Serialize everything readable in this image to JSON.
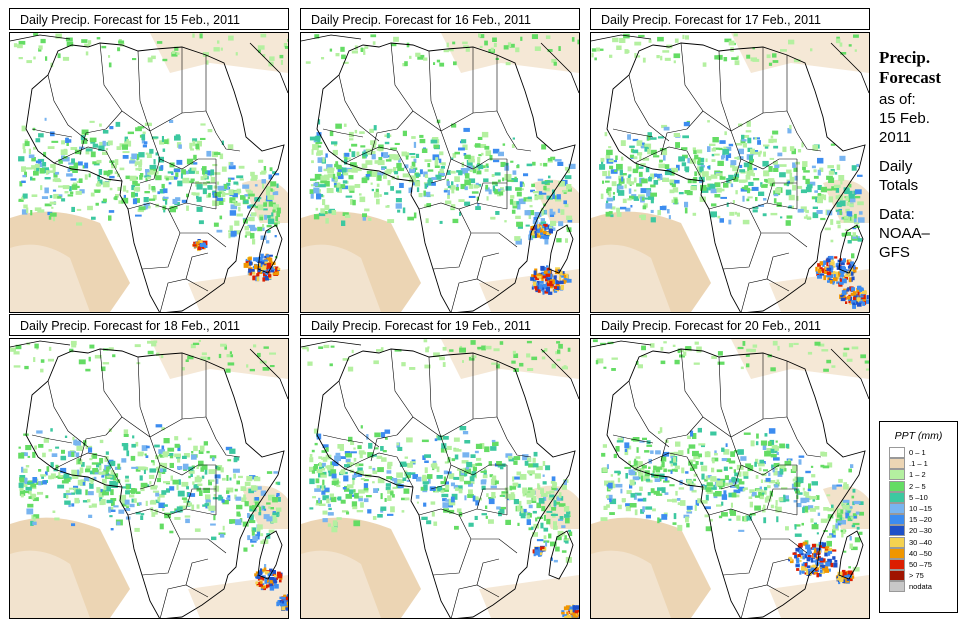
{
  "colors": {
    "background": "#ffffff",
    "land": "#ffffff",
    "border": "#000000",
    "dry": "#ecd5b4"
  },
  "panels": [
    {
      "title": "Daily Precip. Forecast for  15 Feb., 2011"
    },
    {
      "title": "Daily Precip. Forecast for  16 Feb., 2011"
    },
    {
      "title": "Daily Precip. Forecast for  17 Feb., 2011"
    },
    {
      "title": "Daily Precip. Forecast for  18 Feb., 2011"
    },
    {
      "title": "Daily Precip. Forecast for  19 Feb., 2011"
    },
    {
      "title": "Daily Precip. Forecast for  20 Feb., 2011"
    }
  ],
  "side_info": {
    "title_line1": "Precip.",
    "title_line2": "Forecast",
    "as_of": "as of:",
    "date_line1": "15 Feb.",
    "date_line2": "2011",
    "totals_line1": "Daily",
    "totals_line2": "Totals",
    "data_line1": "Data:",
    "data_line2": "NOAA–",
    "data_line3": "GFS"
  },
  "legend": {
    "title": "PPT (mm)",
    "items": [
      {
        "label": "0 – 1",
        "color": "#ffffff"
      },
      {
        "label": ".1 – 1",
        "color": "#ecd5b4"
      },
      {
        "label": "1 – 2",
        "color": "#b4f0a0"
      },
      {
        "label": "2 – 5",
        "color": "#64dc64"
      },
      {
        "label": "5 –10",
        "color": "#3cc8a0"
      },
      {
        "label": "10 –15",
        "color": "#78b4f0"
      },
      {
        "label": "15 –20",
        "color": "#3c8cf0"
      },
      {
        "label": "20 –30",
        "color": "#1e50c8"
      },
      {
        "label": "30 –40",
        "color": "#f5d250"
      },
      {
        "label": "40 –50",
        "color": "#f09600"
      },
      {
        "label": "50 –75",
        "color": "#dc1e00"
      },
      {
        "label": "> 75",
        "color": "#a01400"
      },
      {
        "label": "nodata",
        "color": "#c8c8c8"
      }
    ]
  }
}
